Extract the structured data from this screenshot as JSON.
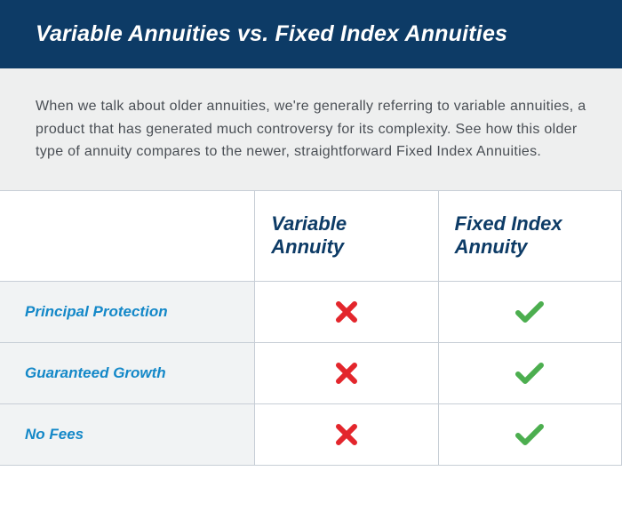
{
  "header": {
    "title": "Variable Annuities vs. Fixed Index Annuities"
  },
  "intro": {
    "text": "When we talk about older annuities, we're generally referring to variable annuities, a product that has generated much controversy for its complexity. See how this older type of annuity compares to the newer, straightforward Fixed Index Annuities."
  },
  "table": {
    "columns": [
      "",
      "Variable Annuity",
      "Fixed Index Annuity"
    ],
    "rows": [
      {
        "feature": "Principal Protection",
        "variable": false,
        "fixed": true
      },
      {
        "feature": "Guaranteed Growth",
        "variable": false,
        "fixed": true
      },
      {
        "feature": "No Fees",
        "variable": false,
        "fixed": true
      }
    ],
    "colors": {
      "header_bg": "#0d3b66",
      "header_text": "#ffffff",
      "intro_bg": "#eeefef",
      "intro_text": "#4a4f55",
      "col_header_text": "#0d3b66",
      "feature_text": "#1488c8",
      "feature_bg": "#f1f3f4",
      "border": "#c7ced6",
      "check": "#4cae4f",
      "cross": "#e3262c"
    },
    "icon_size": 28,
    "icon_stroke_width": 6
  }
}
